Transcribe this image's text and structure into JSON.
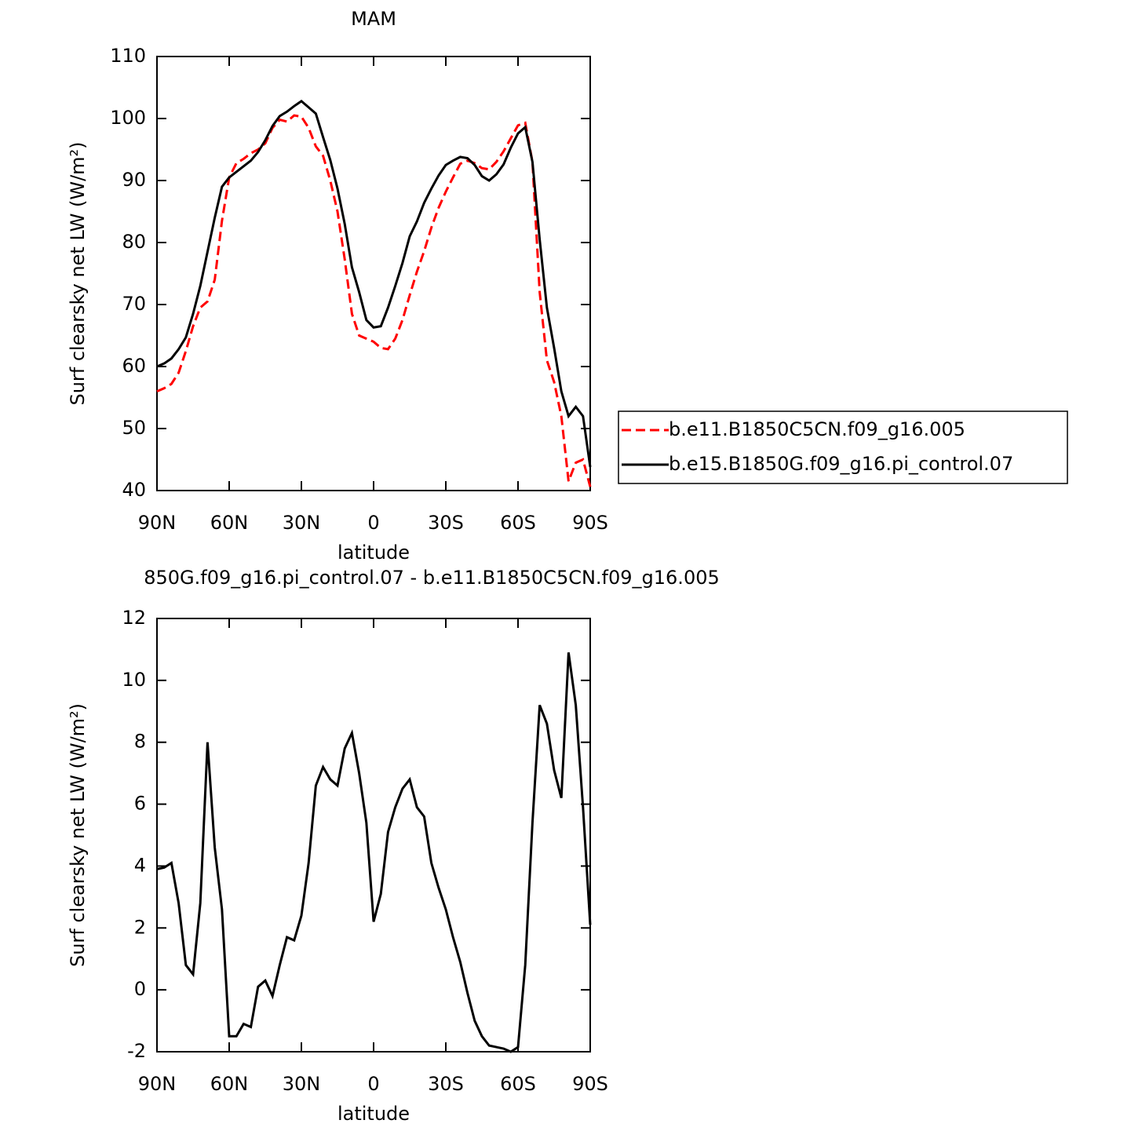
{
  "chart_data": [
    {
      "type": "line",
      "title": "MAM",
      "x_label": "latitude",
      "y_label": "Surf clearsky net LW (W/m²)",
      "x": [
        90,
        87,
        84,
        81,
        78,
        75,
        72,
        69,
        66,
        63,
        60,
        57,
        54,
        51,
        48,
        45,
        42,
        39,
        36,
        33,
        30,
        27,
        24,
        21,
        18,
        15,
        12,
        9,
        6,
        3,
        0,
        -3,
        -6,
        -9,
        -12,
        -15,
        -18,
        -21,
        -24,
        -27,
        -30,
        -33,
        -36,
        -39,
        -42,
        -45,
        -48,
        -51,
        -54,
        -57,
        -60,
        -63,
        -66,
        -69,
        -72,
        -75,
        -78,
        -81,
        -84,
        -87,
        -90
      ],
      "xlim": [
        90,
        -90
      ],
      "xticks": [
        {
          "value": 90,
          "label": "90N"
        },
        {
          "value": 60,
          "label": "60N"
        },
        {
          "value": 30,
          "label": "30N"
        },
        0,
        {
          "value": -30,
          "label": "30S"
        },
        {
          "value": -60,
          "label": "60S"
        },
        {
          "value": -90,
          "label": "90S"
        }
      ],
      "ylim": [
        40,
        110
      ],
      "yticks": [
        40,
        50,
        60,
        70,
        80,
        90,
        100,
        110
      ],
      "legend": "right",
      "series": [
        {
          "name": "b.e11.B1850C5CN.f09_g16.005",
          "color": "#ff0000",
          "dash": "dashed",
          "values": [
            56,
            56.5,
            57.2,
            59,
            62.5,
            66.5,
            69.5,
            70.5,
            74,
            83.5,
            90.5,
            92.8,
            93.5,
            94.4,
            95,
            96,
            98.5,
            99.8,
            99.5,
            100.5,
            100.3,
            98.5,
            95.5,
            94,
            90,
            85,
            77.3,
            68.5,
            65,
            64.5,
            64,
            63,
            62.8,
            64.5,
            67.5,
            71.5,
            75.3,
            78.6,
            82.4,
            85.6,
            88.2,
            90.5,
            92.7,
            93.2,
            92.8,
            92,
            91.8,
            93,
            94.7,
            96.8,
            98.9,
            99.3,
            93,
            72,
            61,
            57.5,
            52,
            41.5,
            44.5,
            45,
            40.6
          ]
        },
        {
          "name": "b.e15.B1850G.f09_g16.pi_control.07",
          "color": "#000000",
          "values": [
            60,
            60.5,
            61.3,
            62.8,
            64.7,
            68.5,
            73,
            78.5,
            84,
            89,
            90.5,
            91.4,
            92.3,
            93.2,
            94.6,
            96.5,
            98.8,
            100.4,
            101.1,
            102,
            102.8,
            101.8,
            100.8,
            97,
            93.3,
            88.7,
            83,
            76,
            72,
            67.5,
            66.3,
            66.5,
            69.5,
            73,
            76.7,
            81,
            83.4,
            86.4,
            88.7,
            90.8,
            92.5,
            93.2,
            93.8,
            93.6,
            92.5,
            90.7,
            90,
            91,
            92.6,
            95.3,
            97.6,
            98.6,
            93,
            80.5,
            69.5,
            63,
            56,
            52,
            53.5,
            52,
            43.8
          ]
        }
      ]
    },
    {
      "type": "line",
      "title": "850G.f09_g16.pi_control.07 - b.e11.B1850C5CN.f09_g16.005",
      "x_label": "latitude",
      "y_label": "Surf clearsky net LW (W/m²)",
      "x": [
        90,
        87,
        84,
        81,
        78,
        75,
        72,
        69,
        66,
        63,
        60,
        57,
        54,
        51,
        48,
        45,
        42,
        39,
        36,
        33,
        30,
        27,
        24,
        21,
        18,
        15,
        12,
        9,
        6,
        3,
        0,
        -3,
        -6,
        -9,
        -12,
        -15,
        -18,
        -21,
        -24,
        -27,
        -30,
        -33,
        -36,
        -39,
        -42,
        -45,
        -48,
        -51,
        -54,
        -57,
        -60,
        -63,
        -66,
        -69,
        -72,
        -75,
        -78,
        -81,
        -84,
        -87,
        -90
      ],
      "xlim": [
        90,
        -90
      ],
      "xticks": [
        {
          "value": 90,
          "label": "90N"
        },
        {
          "value": 60,
          "label": "60N"
        },
        {
          "value": 30,
          "label": "30N"
        },
        0,
        {
          "value": -30,
          "label": "30S"
        },
        {
          "value": -60,
          "label": "60S"
        },
        {
          "value": -90,
          "label": "90S"
        }
      ],
      "ylim": [
        -2,
        12
      ],
      "yticks": [
        -2,
        0,
        2,
        4,
        6,
        8,
        10,
        12
      ],
      "color": "#000000",
      "values": [
        3.9,
        3.95,
        4.1,
        2.8,
        0.8,
        0.5,
        2.8,
        8,
        4.6,
        2.6,
        -1.5,
        -1.5,
        -1.1,
        -1.2,
        0.1,
        0.3,
        -0.2,
        0.8,
        1.7,
        1.6,
        2.4,
        4.1,
        6.6,
        7.2,
        6.8,
        6.6,
        7.8,
        8.3,
        7,
        5.4,
        2.2,
        3.1,
        5.1,
        5.9,
        6.5,
        6.8,
        5.9,
        5.6,
        4.1,
        3.3,
        2.6,
        1.7,
        0.9,
        -0.1,
        -1,
        -1.5,
        -1.8,
        -1.85,
        -1.9,
        -2,
        -1.85,
        0.8,
        5.4,
        9.2,
        8.6,
        7.1,
        6.2,
        10.9,
        9.2,
        5.9,
        2.1
      ]
    }
  ]
}
